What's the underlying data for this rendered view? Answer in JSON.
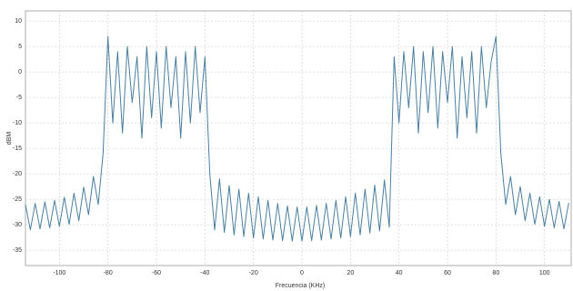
{
  "chart_data": {
    "type": "line",
    "xlabel": "Frecuencia (KHz)",
    "ylabel": "dBM",
    "x": [
      -114,
      -112,
      -110,
      -108,
      -106,
      -104,
      -102,
      -100,
      -98,
      -96,
      -94,
      -92,
      -90,
      -88,
      -86,
      -84,
      -82,
      -80,
      -78,
      -76,
      -74,
      -72,
      -70,
      -68,
      -66,
      -64,
      -62,
      -60,
      -58,
      -56,
      -54,
      -52,
      -50,
      -48,
      -46,
      -44,
      -42,
      -40,
      -38,
      -36,
      -34,
      -32,
      -30,
      -28,
      -26,
      -24,
      -22,
      -20,
      -18,
      -16,
      -14,
      -12,
      -10,
      -8,
      -6,
      -4,
      -2,
      0,
      2,
      4,
      6,
      8,
      10,
      12,
      14,
      16,
      18,
      20,
      22,
      24,
      26,
      28,
      30,
      32,
      34,
      36,
      38,
      40,
      42,
      44,
      46,
      48,
      50,
      52,
      54,
      56,
      58,
      60,
      62,
      64,
      66,
      68,
      70,
      72,
      74,
      76,
      78,
      80,
      82,
      84,
      86,
      88,
      90,
      92,
      94,
      96,
      98,
      100,
      102,
      104,
      106,
      108,
      110
    ],
    "series": [
      {
        "color": "#4a7fa0",
        "values": [
          -26,
          -31,
          -25.8,
          -30.8,
          -25.5,
          -30.6,
          -25.2,
          -30.3,
          -24.6,
          -29.9,
          -23.8,
          -29.2,
          -22.6,
          -28,
          -20.5,
          -26,
          -16,
          7,
          -10,
          4,
          -12,
          5,
          -6,
          3,
          -13,
          5,
          -9,
          4,
          -11,
          5,
          -7,
          3,
          -13,
          4,
          -10,
          5,
          -8,
          3,
          -20,
          -31,
          -21,
          -31.5,
          -22.3,
          -32,
          -23,
          -32.3,
          -23.8,
          -32.6,
          -24.5,
          -32.8,
          -25.2,
          -33,
          -25.8,
          -33.1,
          -26.3,
          -33.2,
          -26.5,
          -33.2,
          -26.5,
          -33.1,
          -26.2,
          -33,
          -25.8,
          -32.8,
          -25.2,
          -32.6,
          -24.5,
          -32.3,
          -23.8,
          -32,
          -23,
          -31.6,
          -22.2,
          -31.2,
          -21.2,
          -30.5,
          3,
          -10,
          4,
          -7,
          5,
          -12,
          4,
          -8,
          5,
          -11,
          4,
          -6,
          5,
          -13,
          3,
          -9,
          4,
          -12,
          5,
          -7,
          2,
          7,
          -16,
          -26,
          -20.5,
          -28,
          -22.5,
          -29.2,
          -23.8,
          -29.9,
          -24.5,
          -30.3,
          -25,
          -30.6,
          -25.4,
          -30.8,
          -25.7
        ]
      }
    ],
    "xlim": [
      -114,
      111
    ],
    "ylim": [
      -38,
      12
    ],
    "xticks": [
      -100,
      -80,
      -60,
      -40,
      -20,
      0,
      20,
      40,
      60,
      80,
      100
    ],
    "yticks": [
      -35,
      -30,
      -25,
      -20,
      -15,
      -10,
      -5,
      0,
      5,
      10
    ],
    "grid": true
  }
}
